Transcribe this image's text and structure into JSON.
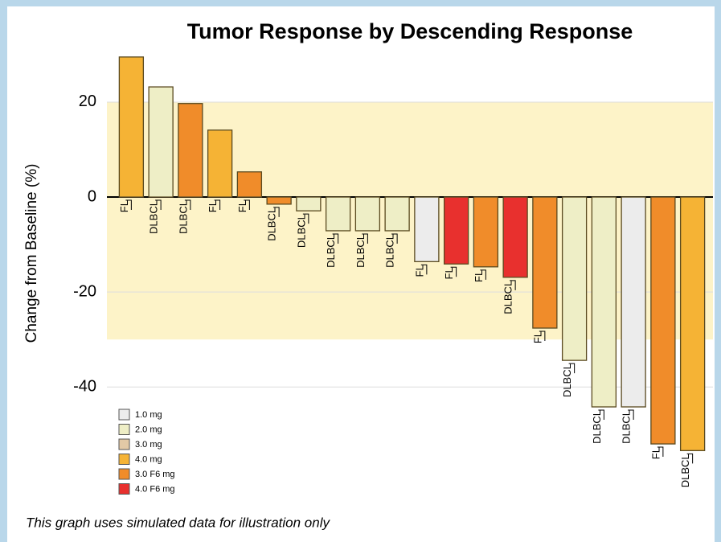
{
  "chart_data": {
    "type": "bar",
    "title": "Tumor Response by Descending Response",
    "y_label": "Change from Baseline (%)",
    "footnote": "This graph uses simulated data for illustration only",
    "categories": [
      "FL",
      "DLBCL",
      "DLBCL",
      "FL",
      "FL",
      "DLBCL",
      "DLBCL",
      "DLBCL",
      "DLBCL",
      "DLBCL",
      "FL",
      "FL",
      "FL",
      "DLBCL",
      "FL",
      "DLBCL",
      "DLBCL",
      "DLBCL",
      "FL",
      "DLBCL"
    ],
    "values": [
      29.5,
      23.2,
      19.7,
      14.1,
      5.3,
      -1.5,
      -2.9,
      -7.1,
      -7.1,
      -7.1,
      -13.6,
      -14.1,
      -14.7,
      -16.9,
      -27.6,
      -34.4,
      -44.2,
      -44.2,
      -52,
      -53.4
    ],
    "colors": [
      "#f5b335",
      "#eeeec6",
      "#f08c2a",
      "#f5b335",
      "#f08c2a",
      "#f08c2a",
      "#eeeec6",
      "#eeeec6",
      "#eeeec6",
      "#eeeec6",
      "#ececec",
      "#e8302e",
      "#f08c2a",
      "#e8302e",
      "#f08c2a",
      "#eeeec6",
      "#eeeec6",
      "#ececec",
      "#f08c2a",
      "#f5b335"
    ],
    "legend": [
      {
        "name": "1.0 mg",
        "color": "#ececec"
      },
      {
        "name": "2.0 mg",
        "color": "#eeeec6"
      },
      {
        "name": "3.0 mg",
        "color": "#e2c9a6"
      },
      {
        "name": "4.0 mg",
        "color": "#f5b335"
      },
      {
        "name": "3.0 F6 mg",
        "color": "#f08c2a"
      },
      {
        "name": "4.0 F6 mg",
        "color": "#e8302e"
      }
    ],
    "reference_band": {
      "from": -30,
      "to": 20,
      "color": "#fdf3c8"
    },
    "ylim": [
      -63,
      31
    ],
    "yticks": [
      -40,
      -20,
      0,
      20
    ],
    "grid": true
  }
}
